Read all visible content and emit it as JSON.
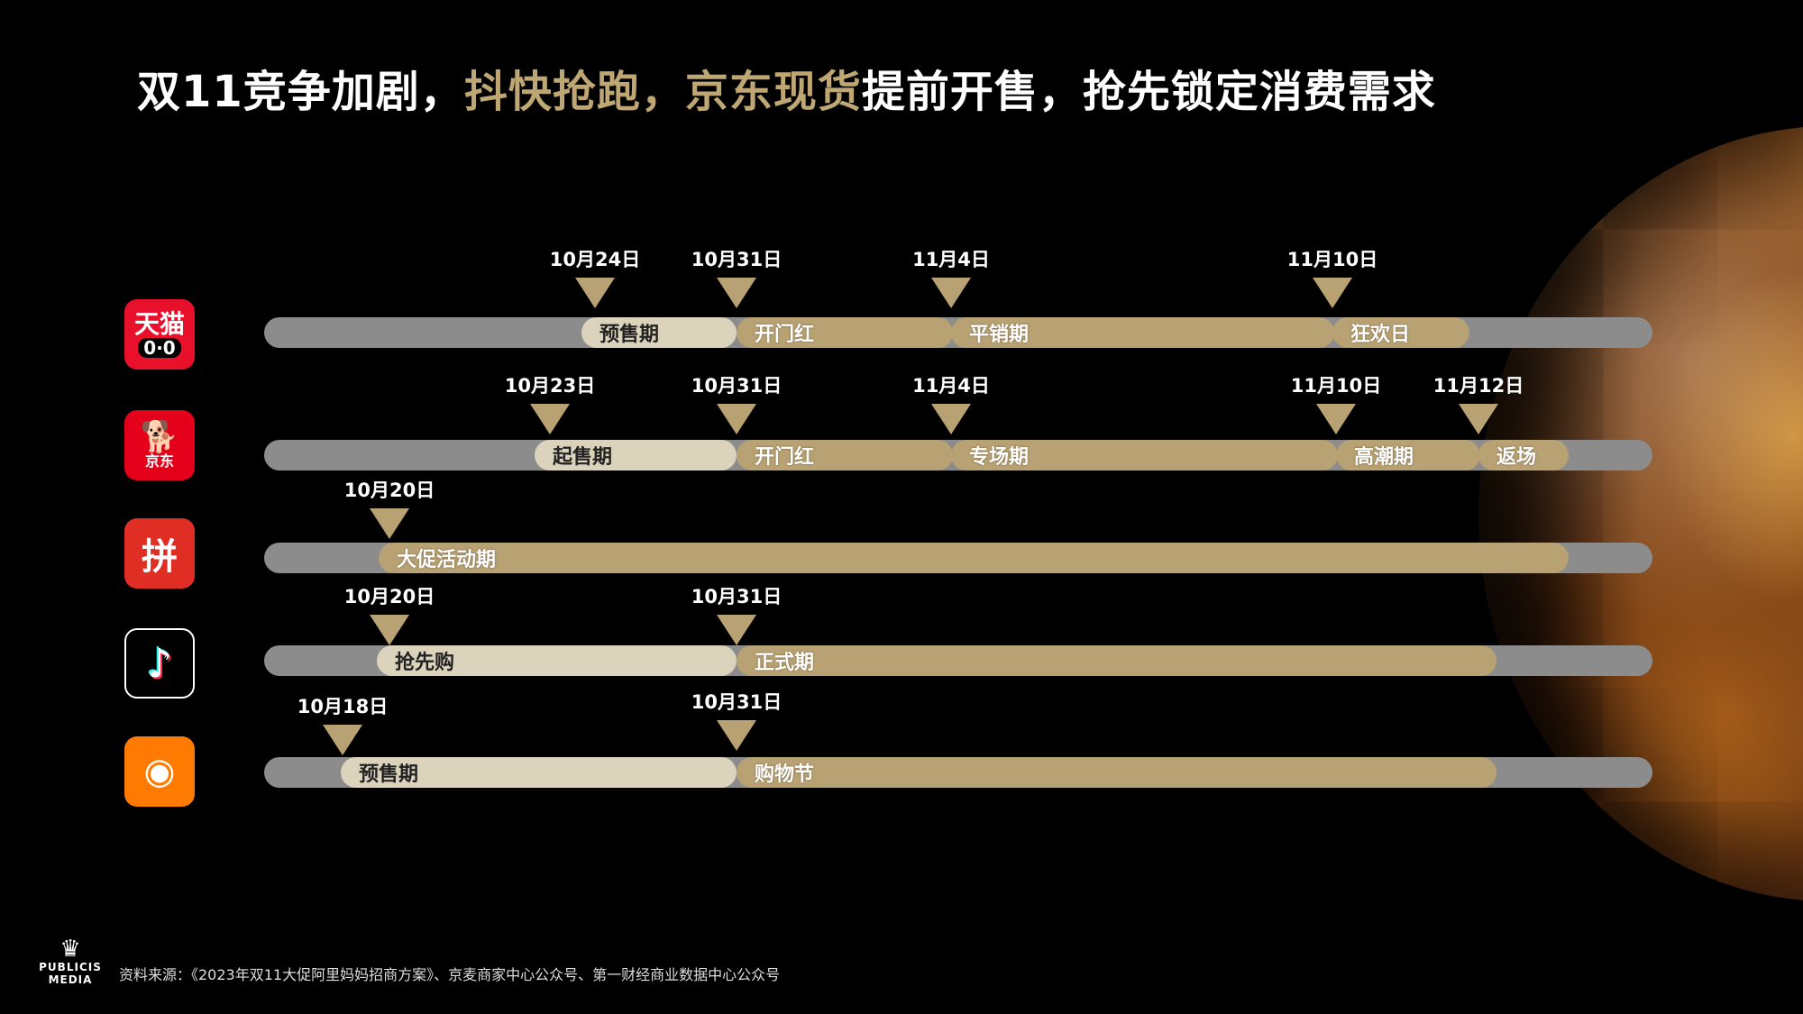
{
  "title": {
    "part1": "双11竞争加剧，",
    "part2": "抖快抢跑，京东现货",
    "part3": "提前开售，抢先锁定消费需求"
  },
  "rows": [
    {
      "platform": "天猫",
      "logo_label": "天猫",
      "logo_sub": "0·0",
      "markers": [
        "10月24日",
        "10月31日",
        "11月4日",
        "11月10日"
      ],
      "phases": [
        "预售期",
        "开门红",
        "平销期",
        "狂欢日"
      ]
    },
    {
      "platform": "京东",
      "logo_label": "京东",
      "markers": [
        "10月23日",
        "10月31日",
        "11月4日",
        "11月10日",
        "11月12日"
      ],
      "phases": [
        "起售期",
        "开门红",
        "专场期",
        "高潮期",
        "返场"
      ]
    },
    {
      "platform": "拼多多",
      "logo_label": "拼",
      "markers": [
        "10月20日"
      ],
      "phases": [
        "大促活动期"
      ]
    },
    {
      "platform": "抖音",
      "logo_label": "♪",
      "markers": [
        "10月20日",
        "10月31日"
      ],
      "phases": [
        "抢先购",
        "正式期"
      ]
    },
    {
      "platform": "快手",
      "logo_label": "◉",
      "markers": [
        "10月18日",
        "10月31日"
      ],
      "phases": [
        "预售期",
        "购物节"
      ]
    }
  ],
  "footer": {
    "source": "资料来源：《2023年双11大促阿里妈妈招商方案》、京麦商家中心公众号、第一财经商业数据中心公众号"
  },
  "brand": {
    "line1": "PUBLICIS",
    "line2": "MEDIA"
  },
  "colors": {
    "gold": "#bfa774",
    "track": "#8c8c8c",
    "light_segment": "#dcd3bd",
    "gold_segment": "#b8a172"
  }
}
